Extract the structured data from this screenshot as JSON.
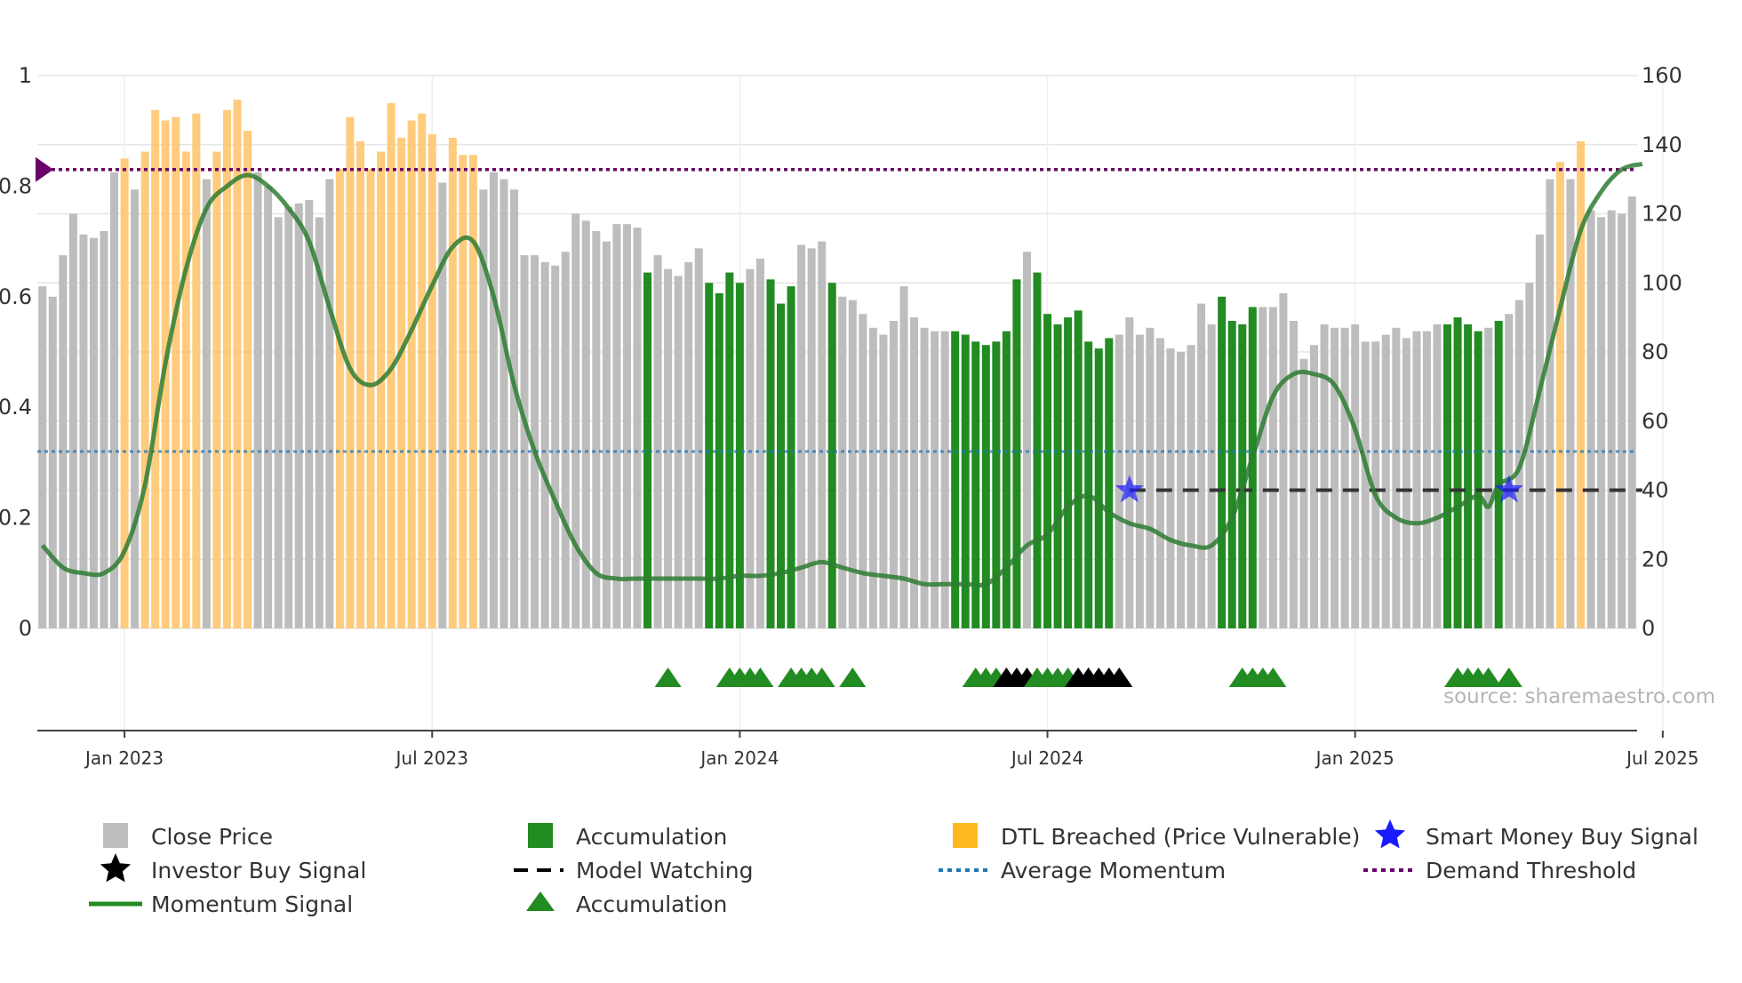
{
  "source_text": "source: sharemaestro.com",
  "colors": {
    "price": "#bdbdbd",
    "accumulation": "#228b22",
    "dtl": "#ffc266",
    "momentum": "#2e7d32",
    "avg_momentum": "#1f77b4",
    "demand": "#6a006a",
    "model_watching": "#333333",
    "smart_money": "#1a1aff",
    "investor": "#000000"
  },
  "chart_data": {
    "type": "bar",
    "title": "",
    "x_ticks": [
      "Jan 2023",
      "Jul 2023",
      "Jan 2024",
      "Jul 2024",
      "Jan 2025",
      "Jul 2025"
    ],
    "left_axis": {
      "ticks": [
        "0",
        "0.2",
        "0.4",
        "0.6",
        "0.8",
        "1"
      ],
      "range": [
        0,
        1
      ]
    },
    "right_axis": {
      "ticks": [
        "0",
        "20",
        "40",
        "60",
        "80",
        "100",
        "120",
        "140",
        "160"
      ],
      "range": [
        0,
        160
      ]
    },
    "price_bars": [
      {
        "v": 99,
        "s": "p"
      },
      {
        "v": 96,
        "s": "p"
      },
      {
        "v": 108,
        "s": "p"
      },
      {
        "v": 120,
        "s": "p"
      },
      {
        "v": 114,
        "s": "p"
      },
      {
        "v": 113,
        "s": "p"
      },
      {
        "v": 115,
        "s": "p"
      },
      {
        "v": 132,
        "s": "p"
      },
      {
        "v": 136,
        "s": "d"
      },
      {
        "v": 127,
        "s": "p"
      },
      {
        "v": 138,
        "s": "d"
      },
      {
        "v": 150,
        "s": "d"
      },
      {
        "v": 147,
        "s": "d"
      },
      {
        "v": 148,
        "s": "d"
      },
      {
        "v": 138,
        "s": "d"
      },
      {
        "v": 149,
        "s": "d"
      },
      {
        "v": 130,
        "s": "p"
      },
      {
        "v": 138,
        "s": "d"
      },
      {
        "v": 150,
        "s": "d"
      },
      {
        "v": 153,
        "s": "d"
      },
      {
        "v": 144,
        "s": "d"
      },
      {
        "v": 132,
        "s": "p"
      },
      {
        "v": 128,
        "s": "p"
      },
      {
        "v": 119,
        "s": "p"
      },
      {
        "v": 122,
        "s": "p"
      },
      {
        "v": 123,
        "s": "p"
      },
      {
        "v": 124,
        "s": "p"
      },
      {
        "v": 119,
        "s": "p"
      },
      {
        "v": 130,
        "s": "p"
      },
      {
        "v": 133,
        "s": "d"
      },
      {
        "v": 148,
        "s": "d"
      },
      {
        "v": 141,
        "s": "d"
      },
      {
        "v": 133,
        "s": "d"
      },
      {
        "v": 138,
        "s": "d"
      },
      {
        "v": 152,
        "s": "d"
      },
      {
        "v": 142,
        "s": "d"
      },
      {
        "v": 147,
        "s": "d"
      },
      {
        "v": 149,
        "s": "d"
      },
      {
        "v": 143,
        "s": "d"
      },
      {
        "v": 129,
        "s": "p"
      },
      {
        "v": 142,
        "s": "d"
      },
      {
        "v": 137,
        "s": "d"
      },
      {
        "v": 137,
        "s": "d"
      },
      {
        "v": 127,
        "s": "p"
      },
      {
        "v": 132,
        "s": "p"
      },
      {
        "v": 130,
        "s": "p"
      },
      {
        "v": 127,
        "s": "p"
      },
      {
        "v": 108,
        "s": "p"
      },
      {
        "v": 108,
        "s": "p"
      },
      {
        "v": 106,
        "s": "p"
      },
      {
        "v": 105,
        "s": "p"
      },
      {
        "v": 109,
        "s": "p"
      },
      {
        "v": 120,
        "s": "p"
      },
      {
        "v": 118,
        "s": "p"
      },
      {
        "v": 115,
        "s": "p"
      },
      {
        "v": 112,
        "s": "p"
      },
      {
        "v": 117,
        "s": "p"
      },
      {
        "v": 117,
        "s": "p"
      },
      {
        "v": 116,
        "s": "p"
      },
      {
        "v": 103,
        "s": "a"
      },
      {
        "v": 108,
        "s": "p"
      },
      {
        "v": 104,
        "s": "p"
      },
      {
        "v": 102,
        "s": "p"
      },
      {
        "v": 106,
        "s": "p"
      },
      {
        "v": 110,
        "s": "p"
      },
      {
        "v": 100,
        "s": "a"
      },
      {
        "v": 97,
        "s": "a"
      },
      {
        "v": 103,
        "s": "a"
      },
      {
        "v": 100,
        "s": "a"
      },
      {
        "v": 104,
        "s": "p"
      },
      {
        "v": 107,
        "s": "p"
      },
      {
        "v": 101,
        "s": "a"
      },
      {
        "v": 94,
        "s": "a"
      },
      {
        "v": 99,
        "s": "a"
      },
      {
        "v": 111,
        "s": "p"
      },
      {
        "v": 110,
        "s": "p"
      },
      {
        "v": 112,
        "s": "p"
      },
      {
        "v": 100,
        "s": "a"
      },
      {
        "v": 96,
        "s": "p"
      },
      {
        "v": 95,
        "s": "p"
      },
      {
        "v": 91,
        "s": "p"
      },
      {
        "v": 87,
        "s": "p"
      },
      {
        "v": 85,
        "s": "p"
      },
      {
        "v": 89,
        "s": "p"
      },
      {
        "v": 99,
        "s": "p"
      },
      {
        "v": 90,
        "s": "p"
      },
      {
        "v": 87,
        "s": "p"
      },
      {
        "v": 86,
        "s": "p"
      },
      {
        "v": 86,
        "s": "p"
      },
      {
        "v": 86,
        "s": "a"
      },
      {
        "v": 85,
        "s": "a"
      },
      {
        "v": 83,
        "s": "a"
      },
      {
        "v": 82,
        "s": "a"
      },
      {
        "v": 83,
        "s": "a"
      },
      {
        "v": 86,
        "s": "a"
      },
      {
        "v": 101,
        "s": "a"
      },
      {
        "v": 109,
        "s": "p"
      },
      {
        "v": 103,
        "s": "a"
      },
      {
        "v": 91,
        "s": "a"
      },
      {
        "v": 88,
        "s": "a"
      },
      {
        "v": 90,
        "s": "a"
      },
      {
        "v": 92,
        "s": "a"
      },
      {
        "v": 83,
        "s": "a"
      },
      {
        "v": 81,
        "s": "a"
      },
      {
        "v": 84,
        "s": "a"
      },
      {
        "v": 85,
        "s": "p"
      },
      {
        "v": 90,
        "s": "p"
      },
      {
        "v": 85,
        "s": "p"
      },
      {
        "v": 87,
        "s": "p"
      },
      {
        "v": 84,
        "s": "p"
      },
      {
        "v": 81,
        "s": "p"
      },
      {
        "v": 80,
        "s": "p"
      },
      {
        "v": 82,
        "s": "p"
      },
      {
        "v": 94,
        "s": "p"
      },
      {
        "v": 88,
        "s": "p"
      },
      {
        "v": 96,
        "s": "a"
      },
      {
        "v": 89,
        "s": "a"
      },
      {
        "v": 88,
        "s": "a"
      },
      {
        "v": 93,
        "s": "a"
      },
      {
        "v": 93,
        "s": "p"
      },
      {
        "v": 93,
        "s": "p"
      },
      {
        "v": 97,
        "s": "p"
      },
      {
        "v": 89,
        "s": "p"
      },
      {
        "v": 78,
        "s": "p"
      },
      {
        "v": 82,
        "s": "p"
      },
      {
        "v": 88,
        "s": "p"
      },
      {
        "v": 87,
        "s": "p"
      },
      {
        "v": 87,
        "s": "p"
      },
      {
        "v": 88,
        "s": "p"
      },
      {
        "v": 83,
        "s": "p"
      },
      {
        "v": 83,
        "s": "p"
      },
      {
        "v": 85,
        "s": "p"
      },
      {
        "v": 87,
        "s": "p"
      },
      {
        "v": 84,
        "s": "p"
      },
      {
        "v": 86,
        "s": "p"
      },
      {
        "v": 86,
        "s": "p"
      },
      {
        "v": 88,
        "s": "p"
      },
      {
        "v": 88,
        "s": "a"
      },
      {
        "v": 90,
        "s": "a"
      },
      {
        "v": 88,
        "s": "a"
      },
      {
        "v": 86,
        "s": "a"
      },
      {
        "v": 87,
        "s": "p"
      },
      {
        "v": 89,
        "s": "a"
      },
      {
        "v": 91,
        "s": "p"
      },
      {
        "v": 95,
        "s": "p"
      },
      {
        "v": 100,
        "s": "p"
      },
      {
        "v": 114,
        "s": "p"
      },
      {
        "v": 130,
        "s": "p"
      },
      {
        "v": 135,
        "s": "d"
      },
      {
        "v": 130,
        "s": "p"
      },
      {
        "v": 141,
        "s": "d"
      },
      {
        "v": 121,
        "s": "p"
      },
      {
        "v": 119,
        "s": "p"
      },
      {
        "v": 121,
        "s": "p"
      },
      {
        "v": 120,
        "s": "p"
      },
      {
        "v": 125,
        "s": "p"
      }
    ],
    "momentum": [
      [
        0,
        0.15
      ],
      [
        2,
        0.11
      ],
      [
        4,
        0.1
      ],
      [
        6,
        0.1
      ],
      [
        8,
        0.14
      ],
      [
        10,
        0.26
      ],
      [
        12,
        0.48
      ],
      [
        14,
        0.65
      ],
      [
        16,
        0.76
      ],
      [
        18,
        0.8
      ],
      [
        20,
        0.82
      ],
      [
        22,
        0.8
      ],
      [
        24,
        0.76
      ],
      [
        26,
        0.7
      ],
      [
        28,
        0.58
      ],
      [
        30,
        0.47
      ],
      [
        32,
        0.44
      ],
      [
        34,
        0.47
      ],
      [
        36,
        0.54
      ],
      [
        38,
        0.62
      ],
      [
        40,
        0.69
      ],
      [
        42,
        0.7
      ],
      [
        44,
        0.6
      ],
      [
        46,
        0.44
      ],
      [
        48,
        0.32
      ],
      [
        50,
        0.23
      ],
      [
        52,
        0.15
      ],
      [
        54,
        0.1
      ],
      [
        56,
        0.09
      ],
      [
        58,
        0.09
      ],
      [
        60,
        0.09
      ],
      [
        62,
        0.09
      ],
      [
        64,
        0.09
      ],
      [
        66,
        0.09
      ],
      [
        68,
        0.095
      ],
      [
        70,
        0.095
      ],
      [
        72,
        0.1
      ],
      [
        74,
        0.11
      ],
      [
        76,
        0.12
      ],
      [
        78,
        0.11
      ],
      [
        80,
        0.1
      ],
      [
        82,
        0.095
      ],
      [
        84,
        0.09
      ],
      [
        86,
        0.08
      ],
      [
        88,
        0.08
      ],
      [
        90,
        0.08
      ],
      [
        92,
        0.08
      ],
      [
        94,
        0.11
      ],
      [
        96,
        0.15
      ],
      [
        98,
        0.17
      ],
      [
        100,
        0.22
      ],
      [
        102,
        0.24
      ],
      [
        104,
        0.21
      ],
      [
        106,
        0.19
      ],
      [
        108,
        0.18
      ],
      [
        110,
        0.16
      ],
      [
        112,
        0.15
      ],
      [
        114,
        0.15
      ],
      [
        116,
        0.2
      ],
      [
        118,
        0.31
      ],
      [
        120,
        0.42
      ],
      [
        122,
        0.46
      ],
      [
        124,
        0.46
      ],
      [
        126,
        0.44
      ],
      [
        128,
        0.36
      ],
      [
        130,
        0.24
      ],
      [
        132,
        0.2
      ],
      [
        134,
        0.19
      ],
      [
        136,
        0.2
      ],
      [
        138,
        0.22
      ],
      [
        140,
        0.24
      ],
      [
        141,
        0.22
      ],
      [
        142,
        0.26
      ],
      [
        144,
        0.29
      ],
      [
        146,
        0.43
      ],
      [
        148,
        0.58
      ],
      [
        150,
        0.72
      ],
      [
        152,
        0.79
      ],
      [
        154,
        0.83
      ],
      [
        156,
        0.84
      ]
    ],
    "average_momentum": 0.32,
    "demand_threshold": 0.83,
    "model_watching": {
      "level": 40,
      "from": 106,
      "to": 156
    },
    "smart_money_signals": [
      {
        "x": 106,
        "y": 40
      },
      {
        "x": 143,
        "y": 40
      }
    ],
    "accumulation_markers": [
      {
        "x": 61,
        "type": "acc"
      },
      {
        "x": 67,
        "type": "acc"
      },
      {
        "x": 68,
        "type": "acc"
      },
      {
        "x": 69,
        "type": "acc"
      },
      {
        "x": 70,
        "type": "acc"
      },
      {
        "x": 73,
        "type": "acc"
      },
      {
        "x": 74,
        "type": "acc"
      },
      {
        "x": 75,
        "type": "acc"
      },
      {
        "x": 76,
        "type": "acc"
      },
      {
        "x": 79,
        "type": "acc"
      },
      {
        "x": 91,
        "type": "acc"
      },
      {
        "x": 92,
        "type": "acc"
      },
      {
        "x": 93,
        "type": "acc"
      },
      {
        "x": 94,
        "type": "inv"
      },
      {
        "x": 95,
        "type": "inv"
      },
      {
        "x": 96,
        "type": "inv"
      },
      {
        "x": 97,
        "type": "acc"
      },
      {
        "x": 98,
        "type": "acc"
      },
      {
        "x": 99,
        "type": "acc"
      },
      {
        "x": 100,
        "type": "acc"
      },
      {
        "x": 101,
        "type": "inv"
      },
      {
        "x": 102,
        "type": "inv"
      },
      {
        "x": 103,
        "type": "inv"
      },
      {
        "x": 104,
        "type": "inv"
      },
      {
        "x": 105,
        "type": "inv"
      },
      {
        "x": 117,
        "type": "acc"
      },
      {
        "x": 118,
        "type": "acc"
      },
      {
        "x": 119,
        "type": "acc"
      },
      {
        "x": 120,
        "type": "acc"
      },
      {
        "x": 138,
        "type": "acc"
      },
      {
        "x": 139,
        "type": "acc"
      },
      {
        "x": 140,
        "type": "acc"
      },
      {
        "x": 141,
        "type": "acc"
      },
      {
        "x": 143,
        "type": "acc"
      }
    ],
    "legend": {
      "close_price": "Close Price",
      "accumulation": "Accumulation",
      "dtl": "DTL Breached (Price Vulnerable)",
      "smart_money": "Smart Money Buy Signal",
      "investor": "Investor Buy Signal",
      "model_watching": "Model Watching",
      "avg_momentum": "Average Momentum",
      "demand": "Demand Threshold",
      "momentum": "Momentum Signal",
      "accumulation_marker": "Accumulation"
    }
  }
}
